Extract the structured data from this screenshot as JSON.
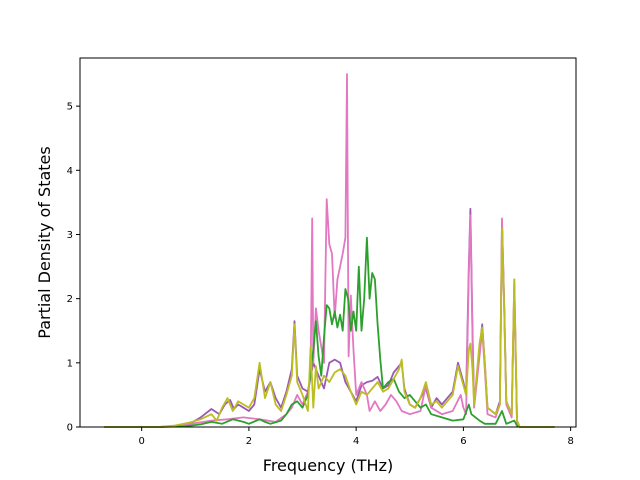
{
  "chart_data": {
    "type": "line",
    "title": "",
    "xlabel": "Frequency (THz)",
    "ylabel": "Partial Density of States",
    "xlim": [
      -1.15,
      8.1
    ],
    "ylim": [
      0,
      5.75
    ],
    "xticks": [
      "0",
      "2",
      "4",
      "6",
      "8"
    ],
    "xtick_values": [
      0,
      2,
      4,
      6,
      8
    ],
    "yticks": [
      "0",
      "1",
      "2",
      "3",
      "4",
      "5"
    ],
    "ytick_values": [
      0,
      1,
      2,
      3,
      4,
      5
    ],
    "grid": false,
    "legend": false,
    "series": [
      {
        "color": "#9b59b6",
        "points": [
          [
            -0.7,
            0
          ],
          [
            0.3,
            0
          ],
          [
            0.6,
            0.01
          ],
          [
            0.9,
            0.05
          ],
          [
            1.1,
            0.15
          ],
          [
            1.3,
            0.28
          ],
          [
            1.45,
            0.2
          ],
          [
            1.55,
            0.35
          ],
          [
            1.65,
            0.42
          ],
          [
            1.72,
            0.28
          ],
          [
            1.8,
            0.35
          ],
          [
            1.9,
            0.3
          ],
          [
            2.0,
            0.25
          ],
          [
            2.1,
            0.35
          ],
          [
            2.2,
            0.9
          ],
          [
            2.3,
            0.55
          ],
          [
            2.4,
            0.7
          ],
          [
            2.5,
            0.45
          ],
          [
            2.6,
            0.3
          ],
          [
            2.7,
            0.55
          ],
          [
            2.8,
            0.9
          ],
          [
            2.85,
            1.65
          ],
          [
            2.9,
            0.8
          ],
          [
            3.0,
            0.6
          ],
          [
            3.1,
            0.55
          ],
          [
            3.2,
            1.0
          ],
          [
            3.3,
            0.8
          ],
          [
            3.4,
            0.6
          ],
          [
            3.5,
            1.0
          ],
          [
            3.6,
            1.05
          ],
          [
            3.7,
            1.0
          ],
          [
            3.8,
            0.7
          ],
          [
            3.9,
            0.55
          ],
          [
            4.0,
            0.4
          ],
          [
            4.1,
            0.65
          ],
          [
            4.2,
            0.7
          ],
          [
            4.3,
            0.72
          ],
          [
            4.4,
            0.78
          ],
          [
            4.5,
            0.6
          ],
          [
            4.6,
            0.65
          ],
          [
            4.7,
            0.85
          ],
          [
            4.8,
            0.95
          ],
          [
            4.85,
            1.0
          ],
          [
            4.9,
            0.6
          ],
          [
            5.0,
            0.35
          ],
          [
            5.1,
            0.3
          ],
          [
            5.2,
            0.45
          ],
          [
            5.3,
            0.6
          ],
          [
            5.4,
            0.3
          ],
          [
            5.5,
            0.45
          ],
          [
            5.6,
            0.35
          ],
          [
            5.7,
            0.45
          ],
          [
            5.8,
            0.55
          ],
          [
            5.9,
            1.0
          ],
          [
            6.0,
            0.7
          ],
          [
            6.05,
            0.5
          ],
          [
            6.1,
            2.5
          ],
          [
            6.13,
            3.4
          ],
          [
            6.17,
            1.5
          ],
          [
            6.2,
            0.35
          ],
          [
            6.3,
            1.2
          ],
          [
            6.35,
            1.6
          ],
          [
            6.4,
            1.0
          ],
          [
            6.45,
            0.3
          ],
          [
            6.6,
            0.2
          ],
          [
            6.68,
            0.4
          ],
          [
            6.72,
            3.2
          ],
          [
            6.76,
            2.0
          ],
          [
            6.8,
            0.4
          ],
          [
            6.9,
            0.2
          ],
          [
            6.95,
            2.2
          ],
          [
            7.0,
            0.1
          ],
          [
            7.05,
            0
          ],
          [
            7.7,
            0
          ]
        ]
      },
      {
        "color": "#e377c2",
        "points": [
          [
            -0.7,
            0
          ],
          [
            0.3,
            0
          ],
          [
            0.7,
            0.02
          ],
          [
            1.0,
            0.06
          ],
          [
            1.3,
            0.1
          ],
          [
            1.6,
            0.12
          ],
          [
            1.9,
            0.15
          ],
          [
            2.2,
            0.12
          ],
          [
            2.5,
            0.08
          ],
          [
            2.7,
            0.2
          ],
          [
            2.8,
            0.3
          ],
          [
            2.9,
            0.5
          ],
          [
            3.0,
            0.35
          ],
          [
            3.1,
            0.55
          ],
          [
            3.15,
            0.8
          ],
          [
            3.18,
            3.25
          ],
          [
            3.2,
            1.0
          ],
          [
            3.25,
            1.85
          ],
          [
            3.3,
            1.5
          ],
          [
            3.4,
            1.0
          ],
          [
            3.45,
            3.55
          ],
          [
            3.5,
            2.85
          ],
          [
            3.55,
            2.7
          ],
          [
            3.6,
            1.7
          ],
          [
            3.65,
            2.3
          ],
          [
            3.7,
            2.5
          ],
          [
            3.75,
            2.7
          ],
          [
            3.8,
            2.95
          ],
          [
            3.83,
            5.5
          ],
          [
            3.86,
            1.1
          ],
          [
            3.9,
            2.05
          ],
          [
            3.95,
            1.2
          ],
          [
            4.0,
            0.5
          ],
          [
            4.1,
            0.7
          ],
          [
            4.2,
            0.5
          ],
          [
            4.25,
            0.25
          ],
          [
            4.35,
            0.4
          ],
          [
            4.45,
            0.25
          ],
          [
            4.55,
            0.35
          ],
          [
            4.65,
            0.5
          ],
          [
            4.75,
            0.4
          ],
          [
            4.85,
            0.25
          ],
          [
            5.0,
            0.2
          ],
          [
            5.2,
            0.25
          ],
          [
            5.3,
            0.65
          ],
          [
            5.4,
            0.3
          ],
          [
            5.6,
            0.2
          ],
          [
            5.8,
            0.25
          ],
          [
            5.95,
            0.5
          ],
          [
            6.0,
            0.3
          ],
          [
            6.05,
            0.2
          ],
          [
            6.1,
            2.4
          ],
          [
            6.13,
            3.3
          ],
          [
            6.17,
            1.4
          ],
          [
            6.2,
            0.3
          ],
          [
            6.3,
            1.1
          ],
          [
            6.35,
            1.5
          ],
          [
            6.4,
            0.9
          ],
          [
            6.45,
            0.2
          ],
          [
            6.6,
            0.15
          ],
          [
            6.68,
            0.35
          ],
          [
            6.72,
            3.25
          ],
          [
            6.76,
            1.9
          ],
          [
            6.8,
            0.35
          ],
          [
            6.9,
            0.15
          ],
          [
            6.95,
            2.3
          ],
          [
            7.0,
            0.05
          ],
          [
            7.05,
            0
          ],
          [
            7.7,
            0
          ]
        ]
      },
      {
        "color": "#2ca02c",
        "points": [
          [
            -0.7,
            0
          ],
          [
            0.3,
            0
          ],
          [
            0.8,
            0.01
          ],
          [
            1.1,
            0.04
          ],
          [
            1.3,
            0.08
          ],
          [
            1.5,
            0.05
          ],
          [
            1.7,
            0.12
          ],
          [
            1.9,
            0.08
          ],
          [
            2.0,
            0.05
          ],
          [
            2.2,
            0.12
          ],
          [
            2.3,
            0.08
          ],
          [
            2.4,
            0.05
          ],
          [
            2.6,
            0.1
          ],
          [
            2.7,
            0.2
          ],
          [
            2.8,
            0.35
          ],
          [
            2.9,
            0.4
          ],
          [
            3.0,
            0.3
          ],
          [
            3.1,
            0.5
          ],
          [
            3.2,
            1.2
          ],
          [
            3.25,
            1.65
          ],
          [
            3.3,
            1.1
          ],
          [
            3.35,
            0.8
          ],
          [
            3.4,
            1.4
          ],
          [
            3.45,
            1.9
          ],
          [
            3.5,
            1.85
          ],
          [
            3.55,
            1.6
          ],
          [
            3.6,
            1.8
          ],
          [
            3.65,
            1.55
          ],
          [
            3.7,
            1.75
          ],
          [
            3.75,
            1.5
          ],
          [
            3.8,
            2.15
          ],
          [
            3.85,
            2.0
          ],
          [
            3.9,
            1.5
          ],
          [
            3.95,
            1.8
          ],
          [
            4.0,
            1.5
          ],
          [
            4.05,
            2.5
          ],
          [
            4.1,
            1.5
          ],
          [
            4.15,
            2.0
          ],
          [
            4.2,
            2.95
          ],
          [
            4.25,
            2.0
          ],
          [
            4.3,
            2.4
          ],
          [
            4.35,
            2.3
          ],
          [
            4.4,
            1.6
          ],
          [
            4.45,
            1.05
          ],
          [
            4.5,
            0.6
          ],
          [
            4.6,
            0.7
          ],
          [
            4.7,
            0.75
          ],
          [
            4.8,
            0.55
          ],
          [
            4.9,
            0.45
          ],
          [
            5.0,
            0.5
          ],
          [
            5.1,
            0.4
          ],
          [
            5.2,
            0.3
          ],
          [
            5.3,
            0.35
          ],
          [
            5.4,
            0.2
          ],
          [
            5.6,
            0.15
          ],
          [
            5.8,
            0.1
          ],
          [
            6.0,
            0.12
          ],
          [
            6.1,
            0.35
          ],
          [
            6.15,
            0.2
          ],
          [
            6.3,
            0.1
          ],
          [
            6.4,
            0.05
          ],
          [
            6.6,
            0.05
          ],
          [
            6.72,
            0.25
          ],
          [
            6.8,
            0.05
          ],
          [
            6.95,
            0.1
          ],
          [
            7.0,
            0.02
          ],
          [
            7.05,
            0
          ],
          [
            7.7,
            0
          ]
        ]
      },
      {
        "color": "#bcbd22",
        "points": [
          [
            -0.7,
            0
          ],
          [
            0.3,
            0
          ],
          [
            0.6,
            0.02
          ],
          [
            0.9,
            0.07
          ],
          [
            1.1,
            0.12
          ],
          [
            1.3,
            0.2
          ],
          [
            1.4,
            0.1
          ],
          [
            1.5,
            0.3
          ],
          [
            1.6,
            0.45
          ],
          [
            1.7,
            0.25
          ],
          [
            1.8,
            0.4
          ],
          [
            1.9,
            0.35
          ],
          [
            2.0,
            0.3
          ],
          [
            2.1,
            0.45
          ],
          [
            2.2,
            1.0
          ],
          [
            2.3,
            0.45
          ],
          [
            2.4,
            0.7
          ],
          [
            2.5,
            0.35
          ],
          [
            2.6,
            0.25
          ],
          [
            2.7,
            0.5
          ],
          [
            2.8,
            0.8
          ],
          [
            2.85,
            1.6
          ],
          [
            2.9,
            0.7
          ],
          [
            3.0,
            0.5
          ],
          [
            3.1,
            0.25
          ],
          [
            3.15,
            1.25
          ],
          [
            3.2,
            0.3
          ],
          [
            3.25,
            0.95
          ],
          [
            3.3,
            0.6
          ],
          [
            3.4,
            0.8
          ],
          [
            3.5,
            0.7
          ],
          [
            3.6,
            0.85
          ],
          [
            3.7,
            0.9
          ],
          [
            3.8,
            0.8
          ],
          [
            3.9,
            0.55
          ],
          [
            4.0,
            0.35
          ],
          [
            4.1,
            0.55
          ],
          [
            4.2,
            0.5
          ],
          [
            4.3,
            0.6
          ],
          [
            4.4,
            0.7
          ],
          [
            4.5,
            0.55
          ],
          [
            4.6,
            0.6
          ],
          [
            4.7,
            0.75
          ],
          [
            4.8,
            0.9
          ],
          [
            4.85,
            1.05
          ],
          [
            4.9,
            0.55
          ],
          [
            5.0,
            0.35
          ],
          [
            5.1,
            0.3
          ],
          [
            5.2,
            0.45
          ],
          [
            5.3,
            0.7
          ],
          [
            5.4,
            0.35
          ],
          [
            5.5,
            0.4
          ],
          [
            5.6,
            0.3
          ],
          [
            5.7,
            0.4
          ],
          [
            5.8,
            0.5
          ],
          [
            5.9,
            0.95
          ],
          [
            6.0,
            0.65
          ],
          [
            6.05,
            0.5
          ],
          [
            6.1,
            1.2
          ],
          [
            6.13,
            1.3
          ],
          [
            6.17,
            0.9
          ],
          [
            6.2,
            0.35
          ],
          [
            6.3,
            1.3
          ],
          [
            6.35,
            1.55
          ],
          [
            6.4,
            1.0
          ],
          [
            6.45,
            0.3
          ],
          [
            6.6,
            0.2
          ],
          [
            6.68,
            0.35
          ],
          [
            6.72,
            3.1
          ],
          [
            6.76,
            1.9
          ],
          [
            6.8,
            0.4
          ],
          [
            6.9,
            0.2
          ],
          [
            6.95,
            2.3
          ],
          [
            7.0,
            0.1
          ],
          [
            7.05,
            0
          ],
          [
            7.7,
            0
          ]
        ]
      }
    ]
  }
}
